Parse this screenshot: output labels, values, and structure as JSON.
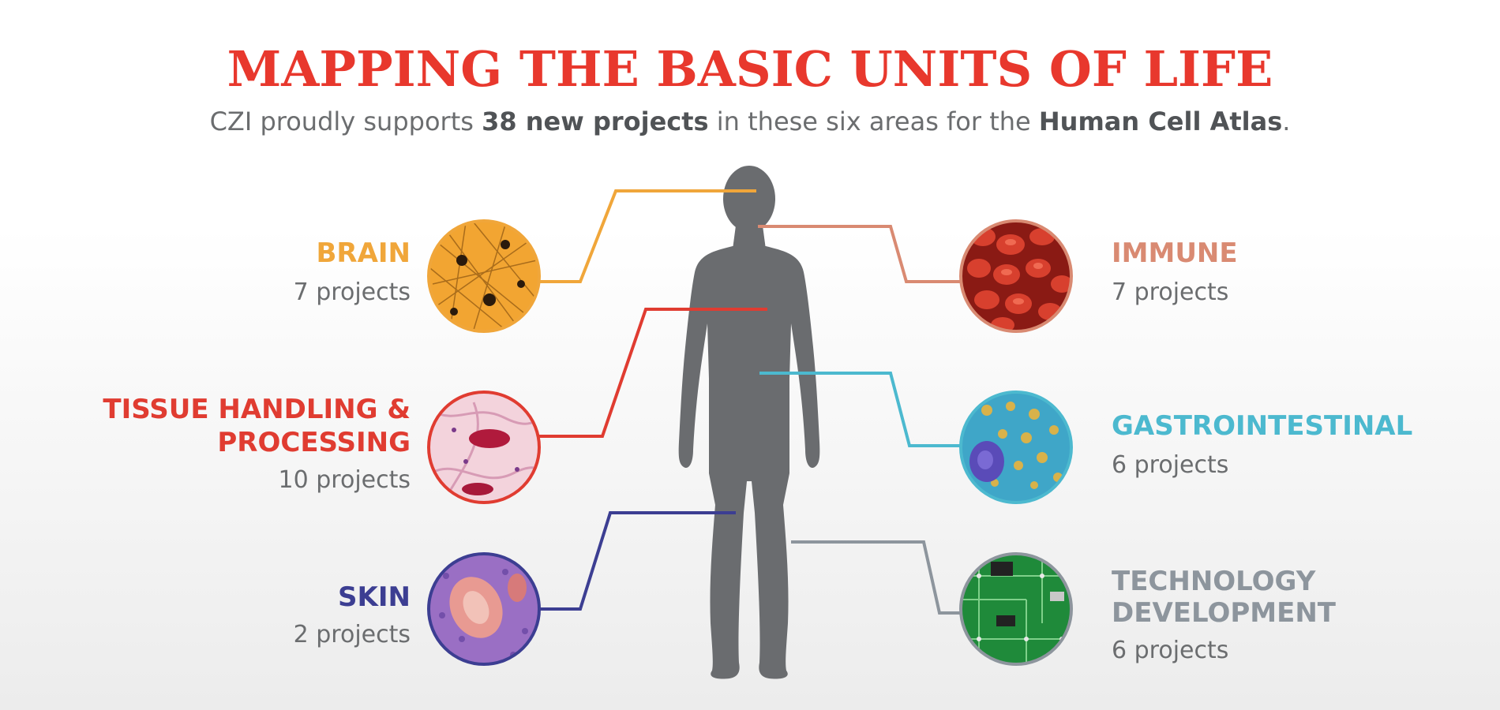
{
  "header": {
    "title": "MAPPING THE BASIC UNITS OF LIFE",
    "subtitle_pre": "CZI proudly supports ",
    "subtitle_bold1": "38 new projects",
    "subtitle_mid": " in these six areas for the ",
    "subtitle_bold2": "Human Cell Atlas",
    "subtitle_post": "."
  },
  "areas": {
    "brain": {
      "label": "BRAIN",
      "count": "7 projects",
      "projects": 7,
      "color": "#f0a63a"
    },
    "tissue": {
      "label_line1": "TISSUE HANDLING &",
      "label_line2": "PROCESSING",
      "count": "10 projects",
      "projects": 10,
      "color": "#e03c31"
    },
    "skin": {
      "label": "SKIN",
      "count": "2 projects",
      "projects": 2,
      "color": "#3c3e92"
    },
    "immune": {
      "label": "IMMUNE",
      "count": "7 projects",
      "projects": 7,
      "color": "#d98a72"
    },
    "gastro": {
      "label": "GASTROINTESTINAL",
      "count": "6 projects",
      "projects": 6,
      "color": "#4cb9cf"
    },
    "technology": {
      "label_line1": "TECHNOLOGY",
      "label_line2": "DEVELOPMENT",
      "count": "6 projects",
      "projects": 6,
      "color": "#8d959d"
    }
  },
  "colors": {
    "title": "#e8382d",
    "text_gray": "#6b6d6f",
    "silhouette": "#6a6c6f"
  },
  "icons": {
    "brain": "neuron-micrograph-icon",
    "tissue": "tissue-histology-icon",
    "skin": "skin-histology-icon",
    "immune": "red-blood-cells-icon",
    "gastro": "gastrointestinal-cell-icon",
    "technology": "circuit-board-icon",
    "body": "human-silhouette-icon"
  }
}
